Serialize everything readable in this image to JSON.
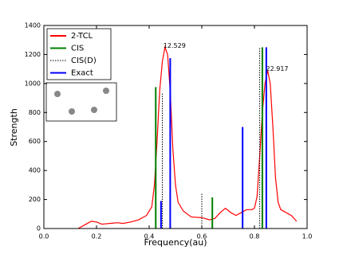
{
  "chart_data": {
    "type": "line",
    "xlabel": "Frequency(au)",
    "ylabel": "Strength",
    "xlim": [
      0,
      1
    ],
    "ylim": [
      0,
      1400
    ],
    "xticks": [
      {
        "value": 0,
        "label": "0.0"
      },
      0.2,
      0.4,
      0.6,
      0.8,
      {
        "value": 1,
        "label": "1.0"
      }
    ],
    "yticks": [
      0,
      200,
      400,
      600,
      800,
      1000,
      1200,
      1400
    ],
    "legend": "upper left",
    "series": [
      {
        "name": "2-TCL",
        "color": "#ff0000",
        "style": "line",
        "x": [
          0.13,
          0.16,
          0.18,
          0.2,
          0.22,
          0.25,
          0.28,
          0.3,
          0.33,
          0.36,
          0.39,
          0.41,
          0.42,
          0.43,
          0.44,
          0.45,
          0.46,
          0.47,
          0.48,
          0.49,
          0.5,
          0.51,
          0.53,
          0.56,
          0.6,
          0.63,
          0.65,
          0.67,
          0.69,
          0.71,
          0.73,
          0.75,
          0.77,
          0.79,
          0.8,
          0.81,
          0.82,
          0.83,
          0.84,
          0.85,
          0.86,
          0.87,
          0.88,
          0.89,
          0.9,
          0.92,
          0.94,
          0.96
        ],
        "values": [
          0,
          30,
          50,
          45,
          30,
          35,
          40,
          35,
          45,
          60,
          90,
          150,
          300,
          600,
          950,
          1150,
          1250,
          1200,
          950,
          550,
          300,
          180,
          120,
          80,
          75,
          60,
          70,
          110,
          140,
          110,
          90,
          110,
          130,
          130,
          140,
          220,
          500,
          800,
          1000,
          1090,
          1000,
          700,
          350,
          180,
          130,
          110,
          90,
          50
        ]
      },
      {
        "name": "CIS",
        "color": "#008000",
        "style": "stem",
        "x": [
          0.425,
          0.64,
          0.83
        ],
        "values": [
          975,
          215,
          1250
        ]
      },
      {
        "name": "CIS(D)",
        "color": "#000000",
        "style": "stem",
        "dashed": true,
        "x": [
          0.45,
          0.6,
          0.82
        ],
        "values": [
          930,
          245,
          1250
        ]
      },
      {
        "name": "Exact",
        "color": "#0000ff",
        "style": "stem",
        "x": [
          0.445,
          0.48,
          0.755,
          0.845
        ],
        "values": [
          190,
          1175,
          700,
          1250
        ]
      }
    ],
    "annotations": [
      {
        "text": "12.529",
        "x": 0.46,
        "y": 1250
      },
      {
        "text": "22.917",
        "x": 0.85,
        "y": 1090
      }
    ]
  }
}
